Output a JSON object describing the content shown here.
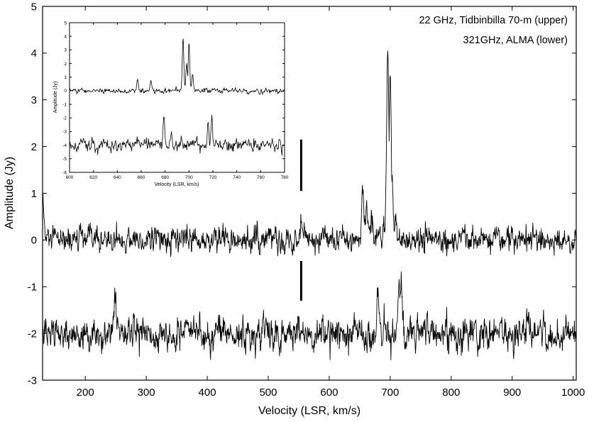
{
  "chart_data": [
    {
      "type": "line",
      "xlabel": "Velocity (LSR, km/s)",
      "ylabel": "Amplitude (Jy)",
      "xlim": [
        130,
        1005
      ],
      "ylim": [
        -3,
        5
      ],
      "x_ticks": [
        200,
        300,
        400,
        500,
        600,
        700,
        800,
        900,
        1000
      ],
      "y_ticks": [
        -3,
        -2,
        -1,
        0,
        1,
        2,
        3,
        4,
        5
      ],
      "annotations": [
        "22 GHz, Tidbinbilla 70-m (upper)",
        "321GHz, ALMA (lower)"
      ],
      "markers": [
        {
          "x": 554,
          "y_from": 1.05,
          "y_to": 2.15
        },
        {
          "x": 554,
          "y_from": -1.3,
          "y_to": -0.45
        }
      ],
      "series": [
        {
          "baseline": 0.0,
          "noise_rms": 0.17,
          "peaks": [
            {
              "x": 130,
              "y": 1.0
            },
            {
              "x": 554,
              "y": 0.6
            },
            {
              "x": 655,
              "y": 1.05
            },
            {
              "x": 661,
              "y": 0.75
            },
            {
              "x": 670,
              "y": 0.5
            },
            {
              "x": 682,
              "y": 0.25
            },
            {
              "x": 690,
              "y": 0.35
            },
            {
              "x": 696,
              "y": 4.05
            },
            {
              "x": 698,
              "y": 2.2
            },
            {
              "x": 700,
              "y": 3.55
            },
            {
              "x": 703,
              "y": 1.3
            },
            {
              "x": 709,
              "y": 0.45
            }
          ]
        },
        {
          "baseline": -2.0,
          "noise_rms": 0.22,
          "peaks": [
            {
              "x": 249,
              "y": -1.45
            },
            {
              "x": 680,
              "y": -1.05
            },
            {
              "x": 714,
              "y": -1.25
            },
            {
              "x": 718,
              "y": -0.8
            }
          ]
        }
      ]
    },
    {
      "type": "line",
      "xlabel": "Velocity (LSR, km/s)",
      "ylabel": "Amplitude (Jy)",
      "xlim": [
        600,
        780
      ],
      "ylim": [
        -6,
        5
      ],
      "x_ticks": [
        600,
        620,
        640,
        660,
        680,
        700,
        720,
        740,
        760,
        780
      ],
      "y_ticks": [
        -6,
        -5,
        -4,
        -3,
        -2,
        -1,
        0,
        1,
        2,
        3,
        4,
        5
      ],
      "series": [
        {
          "baseline": 0.0,
          "noise_rms": 0.12,
          "peaks": [
            {
              "x": 657,
              "y": 1.0
            },
            {
              "x": 668,
              "y": 0.7
            },
            {
              "x": 695,
              "y": 3.95
            },
            {
              "x": 698,
              "y": 2.0
            },
            {
              "x": 700,
              "y": 3.65
            },
            {
              "x": 703,
              "y": 1.2
            }
          ]
        },
        {
          "baseline": -4.0,
          "noise_rms": 0.3,
          "peaks": [
            {
              "x": 657,
              "y": -3.2
            },
            {
              "x": 679,
              "y": -2.0
            },
            {
              "x": 685,
              "y": -2.8
            },
            {
              "x": 716,
              "y": -2.3
            },
            {
              "x": 719,
              "y": -1.85
            }
          ]
        }
      ]
    }
  ]
}
